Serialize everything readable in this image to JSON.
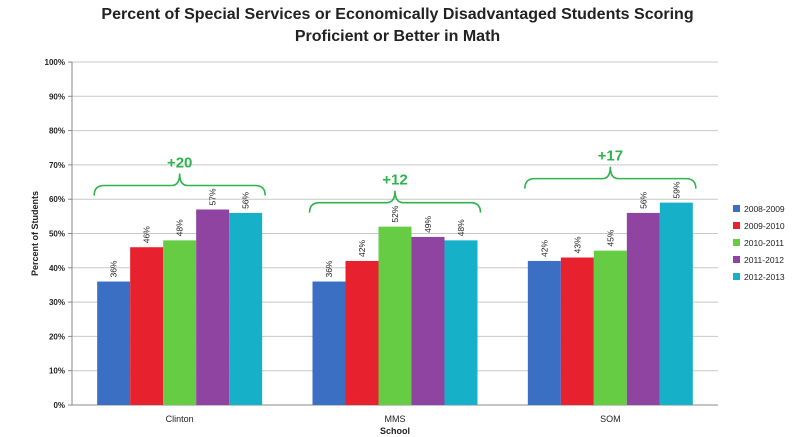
{
  "chart_data": {
    "type": "bar",
    "title_line1": "Percent of Special Services or Economically Disadvantaged Students Scoring",
    "title_line2": "Proficient or Better in Math",
    "xlabel": "School",
    "ylabel": "Percent of Students",
    "ylim": [
      0,
      100
    ],
    "yticks": [
      "0%",
      "10%",
      "20%",
      "30%",
      "40%",
      "50%",
      "60%",
      "70%",
      "80%",
      "90%",
      "100%"
    ],
    "categories": [
      "Clinton",
      "MMS",
      "SOM"
    ],
    "series": [
      {
        "name": "2008-2009",
        "color": "#3a6fc4",
        "values": [
          36,
          36,
          42
        ],
        "labels": [
          "36%",
          "36%",
          "42%"
        ]
      },
      {
        "name": "2009-2010",
        "color": "#e8212f",
        "values": [
          46,
          42,
          43
        ],
        "labels": [
          "46%",
          "42%",
          "43%"
        ]
      },
      {
        "name": "2010-2011",
        "color": "#66cc44",
        "values": [
          48,
          52,
          45
        ],
        "labels": [
          "48%",
          "52%",
          "45%"
        ]
      },
      {
        "name": "2011-2012",
        "color": "#8e44a0",
        "values": [
          57,
          49,
          56
        ],
        "labels": [
          "57%",
          "49%",
          "56%"
        ]
      },
      {
        "name": "2012-2013",
        "color": "#16b0c8",
        "values": [
          56,
          48,
          59
        ],
        "labels": [
          "56%",
          "48%",
          "59%"
        ]
      }
    ],
    "annotations": [
      "+20",
      "+12",
      "+17"
    ],
    "annotation_color": "#2eb34e",
    "grid": true,
    "legend_position": "right"
  }
}
